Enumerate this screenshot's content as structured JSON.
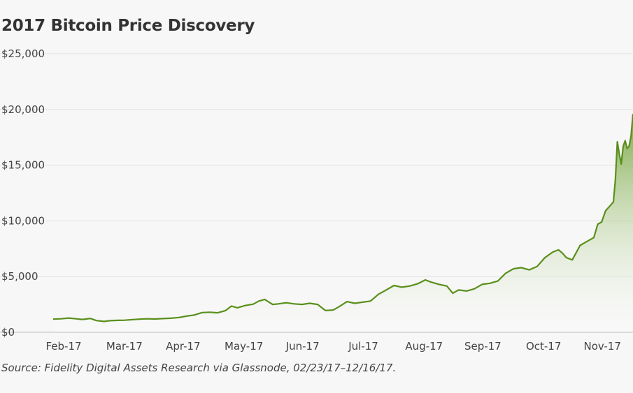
{
  "chart_data": {
    "type": "area",
    "title": "2017 Bitcoin Price Discovery",
    "source": "Source: Fidelity Digital Assets Research via Glassnode, 02/23/17–12/16/17.",
    "xlabel": "",
    "ylabel": "",
    "ylim": [
      0,
      25000
    ],
    "yticks": [
      0,
      5000,
      10000,
      15000,
      20000,
      25000
    ],
    "ytick_labels": [
      "$0",
      "$5,000",
      "$10,000",
      "$15,000",
      "$20,000",
      "$25,000"
    ],
    "xlim": [
      "2017-02-23",
      "2017-12-16"
    ],
    "xticks": [
      "2017-02-28",
      "2017-03-31",
      "2017-04-30",
      "2017-05-31",
      "2017-06-30",
      "2017-07-31",
      "2017-08-31",
      "2017-09-30",
      "2017-10-31",
      "2017-11-30"
    ],
    "xtick_labels": [
      "Feb-17",
      "Mar-17",
      "Apr-17",
      "May-17",
      "Jun-17",
      "Jul-17",
      "Aug-17",
      "Sep-17",
      "Oct-17",
      "Nov-17"
    ],
    "grid": "horizontal",
    "legend": "none",
    "colors": {
      "line": "#5a8f1c",
      "fill_top": "#72a43a",
      "fill_bottom": "#ffffff"
    },
    "series": [
      {
        "x": [
          "2017-02-23",
          "2017-02-27",
          "2017-03-03",
          "2017-03-07",
          "2017-03-10",
          "2017-03-14",
          "2017-03-17",
          "2017-03-21",
          "2017-03-24",
          "2017-03-28",
          "2017-03-31",
          "2017-04-04",
          "2017-04-08",
          "2017-04-12",
          "2017-04-16",
          "2017-04-20",
          "2017-04-24",
          "2017-04-28",
          "2017-05-02",
          "2017-05-06",
          "2017-05-10",
          "2017-05-14",
          "2017-05-18",
          "2017-05-22",
          "2017-05-25",
          "2017-05-28",
          "2017-06-01",
          "2017-06-05",
          "2017-06-08",
          "2017-06-11",
          "2017-06-15",
          "2017-06-18",
          "2017-06-22",
          "2017-06-26",
          "2017-06-30",
          "2017-07-04",
          "2017-07-08",
          "2017-07-12",
          "2017-07-16",
          "2017-07-19",
          "2017-07-23",
          "2017-07-27",
          "2017-07-31",
          "2017-08-04",
          "2017-08-08",
          "2017-08-12",
          "2017-08-16",
          "2017-08-20",
          "2017-08-24",
          "2017-08-28",
          "2017-09-01",
          "2017-09-04",
          "2017-09-08",
          "2017-09-12",
          "2017-09-15",
          "2017-09-18",
          "2017-09-22",
          "2017-09-26",
          "2017-09-30",
          "2017-10-04",
          "2017-10-08",
          "2017-10-12",
          "2017-10-16",
          "2017-10-20",
          "2017-10-24",
          "2017-10-28",
          "2017-11-01",
          "2017-11-05",
          "2017-11-08",
          "2017-11-10",
          "2017-11-12",
          "2017-11-15",
          "2017-11-19",
          "2017-11-22",
          "2017-11-26",
          "2017-11-28",
          "2017-11-30",
          "2017-12-02",
          "2017-12-04",
          "2017-12-06",
          "2017-12-07",
          "2017-12-08",
          "2017-12-09",
          "2017-12-10",
          "2017-12-11",
          "2017-12-12",
          "2017-12-13",
          "2017-12-14",
          "2017-12-15",
          "2017-12-16"
        ],
        "values": [
          1180,
          1210,
          1280,
          1200,
          1150,
          1240,
          1050,
          970,
          1040,
          1070,
          1080,
          1130,
          1180,
          1210,
          1190,
          1230,
          1260,
          1320,
          1450,
          1550,
          1770,
          1800,
          1750,
          1950,
          2350,
          2200,
          2400,
          2520,
          2800,
          2950,
          2500,
          2550,
          2650,
          2550,
          2500,
          2600,
          2500,
          1950,
          2000,
          2300,
          2750,
          2600,
          2700,
          2800,
          3400,
          3800,
          4200,
          4050,
          4150,
          4350,
          4700,
          4500,
          4300,
          4150,
          3500,
          3800,
          3700,
          3900,
          4300,
          4400,
          4600,
          5300,
          5700,
          5800,
          5600,
          5900,
          6700,
          7200,
          7400,
          7100,
          6700,
          6500,
          7800,
          8100,
          8500,
          9700,
          9900,
          10900,
          11300,
          11700,
          13700,
          17100,
          16000,
          15100,
          16700,
          17200,
          16500,
          16700,
          17600,
          19600
        ]
      }
    ]
  }
}
